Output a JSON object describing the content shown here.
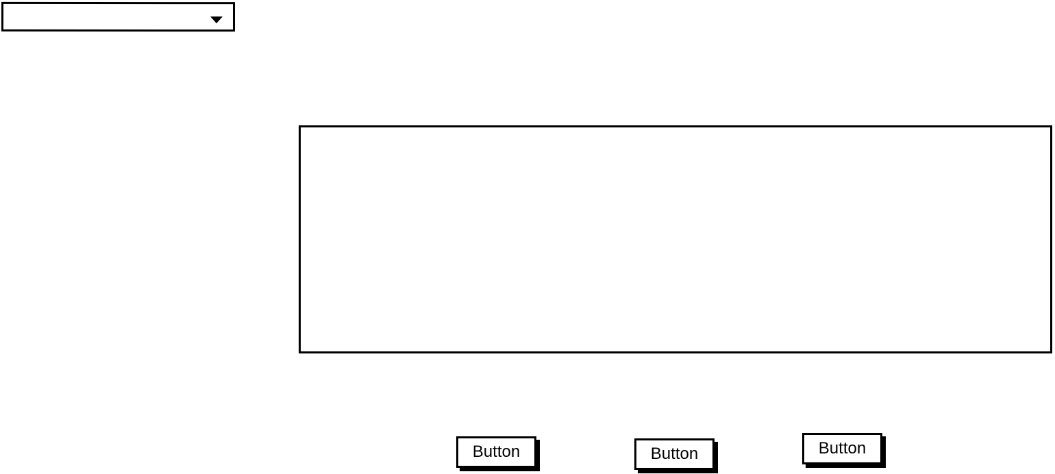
{
  "dropdown": {
    "selected_value": ""
  },
  "buttons": [
    {
      "label": "Button"
    },
    {
      "label": "Button"
    },
    {
      "label": "Button"
    }
  ]
}
